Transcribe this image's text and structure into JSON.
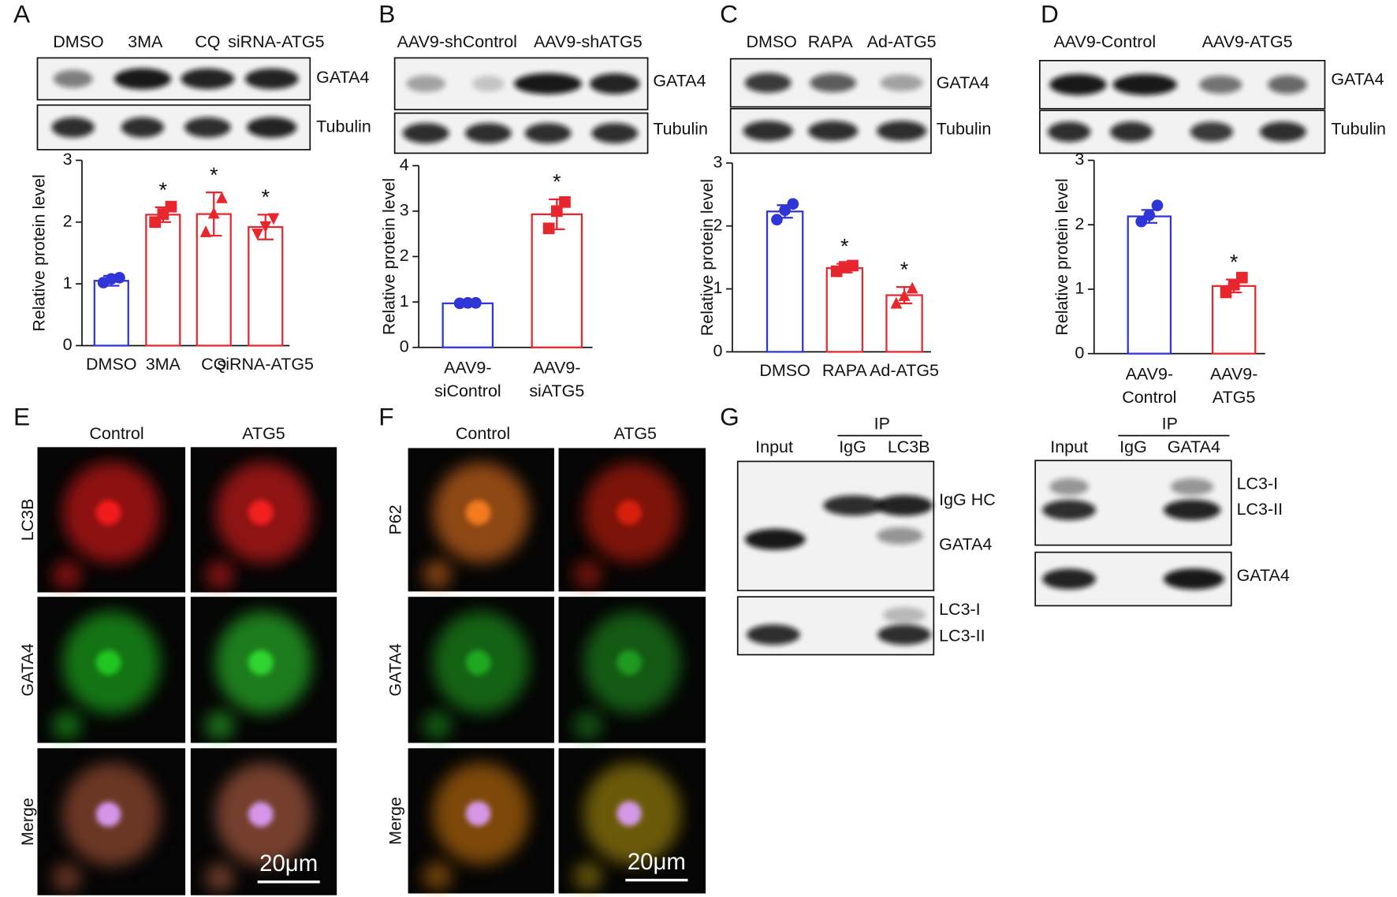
{
  "panel_labels": [
    "A",
    "B",
    "C",
    "D",
    "E",
    "F",
    "G"
  ],
  "blots": {
    "A": {
      "lanes": [
        "DMSO",
        "3MA",
        "CQ",
        "siRNA-ATG5"
      ],
      "bands": [
        "GATA4",
        "Tubulin"
      ]
    },
    "B": {
      "lanes": [
        "AAV9-shControl",
        "AAV9-shATG5"
      ],
      "bands": [
        "GATA4",
        "Tubulin"
      ]
    },
    "C": {
      "lanes": [
        "DMSO",
        "RAPA",
        "Ad-ATG5"
      ],
      "bands": [
        "GATA4",
        "Tubulin"
      ]
    },
    "D": {
      "lanes": [
        "AAV9-Control",
        "AAV9-ATG5"
      ],
      "bands": [
        "GATA4",
        "Tubulin"
      ]
    },
    "G_left": {
      "ip": "IP",
      "lanes": [
        "Input",
        "IgG",
        "LC3B"
      ],
      "bands": [
        "IgG HC",
        "GATA4",
        "LC3-I",
        "LC3-II"
      ]
    },
    "G_right": {
      "ip": "IP",
      "lanes": [
        "Input",
        "IgG",
        "GATA4"
      ],
      "bands": [
        "LC3-I",
        "LC3-II",
        "GATA4"
      ]
    }
  },
  "images": {
    "E": {
      "columns": [
        "Control",
        "ATG5"
      ],
      "rows": [
        "LC3B",
        "GATA4",
        "Merge"
      ],
      "scale_bar": "20μm"
    },
    "F": {
      "columns": [
        "Control",
        "ATG5"
      ],
      "rows": [
        "P62",
        "GATA4",
        "Merge"
      ],
      "scale_bar": "20μm"
    }
  },
  "chart_data": [
    {
      "type": "bar",
      "y_label": "Relative protein level",
      "categories": [
        "DMSO",
        "3MA",
        "CQ",
        "siRNA-ATG5"
      ],
      "values": [
        1.05,
        2.12,
        2.13,
        1.92
      ],
      "errors": [
        0.08,
        0.12,
        0.35,
        0.2
      ],
      "points": [
        [
          1.02,
          1.08,
          1.1
        ],
        [
          2.0,
          2.13,
          2.25
        ],
        [
          1.85,
          2.15,
          2.4
        ],
        [
          1.8,
          1.92,
          2.05
        ]
      ],
      "colors": [
        "#2f35d6",
        "#e8262d",
        "#e8262d",
        "#e8262d"
      ],
      "markers": [
        "circle",
        "square",
        "triangle",
        "triangle-down"
      ],
      "annotations": [
        null,
        "*",
        "*",
        "*"
      ],
      "ylim": [
        0,
        3
      ],
      "yticks": [
        0,
        1,
        2,
        3
      ]
    },
    {
      "type": "bar",
      "y_label": "Relative protein level",
      "categories": [
        [
          "AAV9-",
          "siControl"
        ],
        [
          "AAV9-",
          "siATG5"
        ]
      ],
      "values": [
        0.97,
        2.93
      ],
      "errors": [
        0.03,
        0.33
      ],
      "points": [
        [
          0.97,
          0.98,
          0.98
        ],
        [
          2.62,
          3.0,
          3.2
        ]
      ],
      "colors": [
        "#2f35d6",
        "#e8262d"
      ],
      "markers": [
        "circle",
        "square"
      ],
      "annotations": [
        null,
        "*"
      ],
      "ylim": [
        0,
        4
      ],
      "yticks": [
        0,
        1,
        2,
        3,
        4
      ]
    },
    {
      "type": "bar",
      "y_label": "Relative protein level",
      "categories": [
        "DMSO",
        "RAPA",
        "Ad-ATG5"
      ],
      "values": [
        2.23,
        1.33,
        0.9
      ],
      "errors": [
        0.1,
        0.07,
        0.13
      ],
      "points": [
        [
          2.1,
          2.25,
          2.35
        ],
        [
          1.28,
          1.35,
          1.37
        ],
        [
          0.78,
          0.9,
          1.02
        ]
      ],
      "colors": [
        "#2f35d6",
        "#e8262d",
        "#e8262d"
      ],
      "markers": [
        "circle",
        "square",
        "triangle"
      ],
      "annotations": [
        null,
        "*",
        "*"
      ],
      "ylim": [
        0,
        3
      ],
      "yticks": [
        0,
        1,
        2,
        3
      ]
    },
    {
      "type": "bar",
      "y_label": "Relative protein level",
      "categories": [
        [
          "AAV9-",
          "Control"
        ],
        [
          "AAV9-",
          "ATG5"
        ]
      ],
      "values": [
        2.13,
        1.05
      ],
      "errors": [
        0.1,
        0.1
      ],
      "points": [
        [
          2.05,
          2.15,
          2.3
        ],
        [
          0.95,
          1.07,
          1.18
        ]
      ],
      "colors": [
        "#2f35d6",
        "#e8262d"
      ],
      "markers": [
        "circle",
        "square"
      ],
      "annotations": [
        null,
        "*"
      ],
      "ylim": [
        0,
        3
      ],
      "yticks": [
        0,
        1,
        2,
        3
      ]
    }
  ]
}
